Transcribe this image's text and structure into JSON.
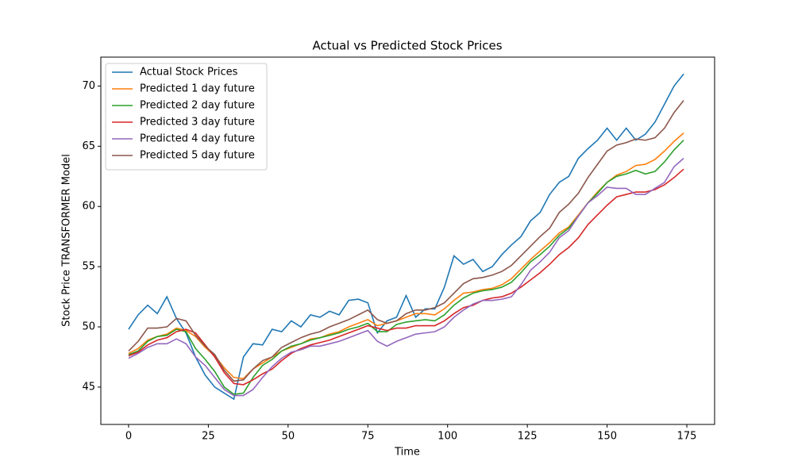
{
  "chart_data": {
    "type": "line",
    "title": "Actual vs Predicted Stock Prices",
    "xlabel": "Time",
    "ylabel": "Stock Price TRANSFORMER Model",
    "x": [
      0,
      3,
      6,
      9,
      12,
      15,
      18,
      21,
      24,
      27,
      30,
      33,
      36,
      39,
      42,
      45,
      48,
      51,
      54,
      57,
      60,
      63,
      66,
      69,
      72,
      75,
      78,
      81,
      84,
      87,
      90,
      93,
      96,
      99,
      102,
      105,
      108,
      111,
      114,
      117,
      120,
      123,
      126,
      129,
      132,
      135,
      138,
      141,
      144,
      147,
      150,
      153,
      156,
      159,
      162,
      165,
      168,
      171,
      174
    ],
    "xlim": [
      -8.7,
      183.7
    ],
    "xticks": [
      0,
      25,
      50,
      75,
      100,
      125,
      150,
      175
    ],
    "ylim": [
      41.9,
      72.4
    ],
    "yticks": [
      45,
      50,
      55,
      60,
      65,
      70
    ],
    "grid": false,
    "legend": "upper left",
    "series": [
      {
        "name": "Actual Stock Prices",
        "color": "#1f77b4",
        "values": [
          49.8,
          51.0,
          51.8,
          51.1,
          52.5,
          50.7,
          49.5,
          47.5,
          46.0,
          45.0,
          44.5,
          44.0,
          47.5,
          48.6,
          48.5,
          49.8,
          49.6,
          50.5,
          50.0,
          51.0,
          50.8,
          51.3,
          51.0,
          52.2,
          52.3,
          52.0,
          49.5,
          50.5,
          50.8,
          52.6,
          50.8,
          51.5,
          51.5,
          53.3,
          55.9,
          55.2,
          55.6,
          54.6,
          55.0,
          56.0,
          56.8,
          57.5,
          58.8,
          59.5,
          61.0,
          62.0,
          62.5,
          64.0,
          64.8,
          65.5,
          66.5,
          65.5,
          66.5,
          65.5,
          66.0,
          67.0,
          68.5,
          70.0,
          71.0
        ]
      },
      {
        "name": "Predicted 1 day future",
        "color": "#ff7f0e",
        "values": [
          47.8,
          48.2,
          48.9,
          49.2,
          49.4,
          49.9,
          49.7,
          49.2,
          48.3,
          47.6,
          46.6,
          45.8,
          45.7,
          46.5,
          47.0,
          47.5,
          48.0,
          48.3,
          48.6,
          49.0,
          49.1,
          49.4,
          49.6,
          50.0,
          50.3,
          50.6,
          50.1,
          50.3,
          50.5,
          50.8,
          51.1,
          51.1,
          51.0,
          51.5,
          52.2,
          52.8,
          52.9,
          53.1,
          53.2,
          53.5,
          54.0,
          54.8,
          55.6,
          56.3,
          57.0,
          57.8,
          58.3,
          59.3,
          60.3,
          61.2,
          62.0,
          62.6,
          62.9,
          63.4,
          63.5,
          63.9,
          64.6,
          65.4,
          66.1
        ]
      },
      {
        "name": "Predicted 2 day future",
        "color": "#2ca02c",
        "values": [
          47.7,
          48.0,
          48.8,
          49.2,
          49.3,
          49.8,
          49.6,
          48.2,
          47.3,
          46.3,
          45.0,
          44.4,
          44.5,
          45.8,
          46.8,
          47.3,
          48.0,
          48.4,
          48.6,
          48.9,
          49.1,
          49.3,
          49.5,
          49.8,
          50.0,
          50.3,
          49.6,
          49.6,
          50.2,
          50.4,
          50.5,
          50.6,
          50.5,
          51.0,
          51.8,
          52.4,
          52.8,
          53.0,
          53.1,
          53.3,
          53.7,
          54.5,
          55.4,
          56.0,
          56.7,
          57.6,
          58.2,
          59.2,
          60.3,
          61.1,
          62.0,
          62.5,
          62.7,
          63.0,
          62.7,
          62.9,
          63.7,
          64.7,
          65.5
        ]
      },
      {
        "name": "Predicted 3 day future",
        "color": "#d62728",
        "values": [
          47.6,
          47.9,
          48.5,
          48.9,
          49.1,
          49.6,
          49.8,
          49.5,
          48.5,
          47.5,
          46.2,
          45.3,
          45.2,
          45.6,
          46.1,
          46.5,
          47.2,
          47.8,
          48.2,
          48.5,
          48.7,
          48.9,
          49.2,
          49.5,
          49.8,
          50.1,
          49.9,
          49.7,
          49.9,
          49.9,
          50.1,
          50.1,
          50.1,
          50.5,
          51.1,
          51.6,
          51.8,
          52.2,
          52.4,
          52.5,
          52.8,
          53.3,
          53.9,
          54.5,
          55.2,
          56.0,
          56.6,
          57.4,
          58.5,
          59.3,
          60.1,
          60.8,
          61.0,
          61.2,
          61.2,
          61.4,
          61.8,
          62.4,
          63.1
        ]
      },
      {
        "name": "Predicted 4 day future",
        "color": "#9467bd",
        "values": [
          47.4,
          47.8,
          48.3,
          48.6,
          48.6,
          49.0,
          48.6,
          47.5,
          46.8,
          45.8,
          44.8,
          44.3,
          44.3,
          44.8,
          45.8,
          46.7,
          47.4,
          47.9,
          48.1,
          48.4,
          48.4,
          48.6,
          48.8,
          49.1,
          49.4,
          49.7,
          48.8,
          48.4,
          48.8,
          49.1,
          49.4,
          49.5,
          49.6,
          50.0,
          50.8,
          51.4,
          51.9,
          52.2,
          52.2,
          52.3,
          52.5,
          53.5,
          54.7,
          55.4,
          56.2,
          57.4,
          58.0,
          59.2,
          60.3,
          60.9,
          61.6,
          61.5,
          61.5,
          61.0,
          61.0,
          61.5,
          62.0,
          63.3,
          64.0
        ]
      },
      {
        "name": "Predicted 5 day future",
        "color": "#8c564b",
        "values": [
          48.0,
          48.8,
          49.9,
          49.9,
          50.0,
          50.7,
          50.5,
          49.3,
          48.4,
          47.7,
          46.4,
          45.5,
          45.6,
          46.5,
          47.2,
          47.5,
          48.3,
          48.7,
          49.1,
          49.4,
          49.6,
          50.0,
          50.3,
          50.6,
          51.0,
          51.4,
          50.6,
          50.3,
          50.5,
          51.1,
          51.4,
          51.4,
          51.6,
          52.0,
          52.8,
          53.6,
          54.0,
          54.1,
          54.3,
          54.6,
          55.1,
          55.9,
          56.7,
          57.5,
          58.2,
          59.5,
          60.2,
          61.1,
          62.4,
          63.5,
          64.6,
          65.1,
          65.3,
          65.6,
          65.5,
          65.7,
          66.5,
          67.8,
          68.8
        ]
      }
    ]
  }
}
